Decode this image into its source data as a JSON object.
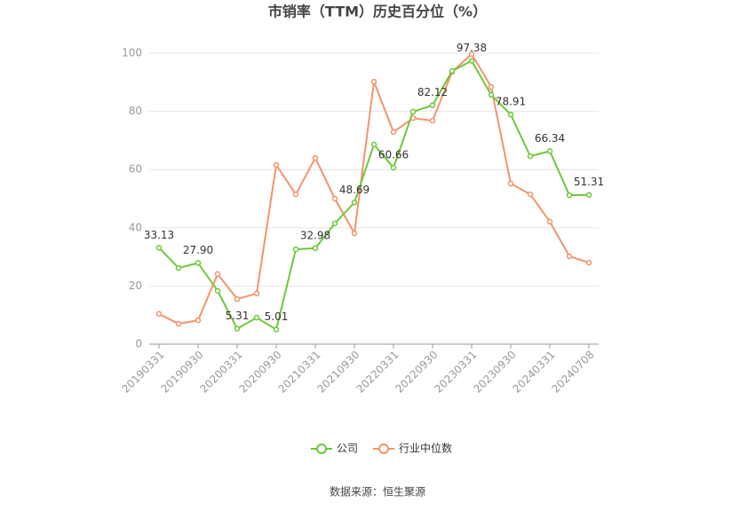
{
  "chart_data": {
    "type": "line",
    "title": "市销率（TTM）历史百分位（%）",
    "source": "数据来源：恒生聚源",
    "categories": [
      "20190331",
      null,
      "20190930",
      null,
      "20200331",
      null,
      "20200930",
      null,
      "20210331",
      null,
      "20210930",
      null,
      "20220331",
      null,
      "20220930",
      null,
      "20230331",
      null,
      "20230930",
      null,
      "20240331",
      null,
      "20240708"
    ],
    "series": [
      {
        "name": "公司",
        "color": "#6cc83a",
        "values": [
          33.13,
          26.2,
          27.9,
          18.3,
          5.31,
          9.1,
          5.01,
          32.6,
          32.98,
          41.5,
          48.69,
          68.6,
          60.66,
          79.9,
          82.12,
          93.9,
          97.38,
          85.7,
          78.91,
          64.6,
          66.34,
          51.2,
          51.31
        ],
        "value_labels": [
          "33.13",
          null,
          "27.90",
          null,
          "5.31",
          null,
          "5.01",
          null,
          "32.98",
          null,
          "48.69",
          null,
          "60.66",
          null,
          "82.12",
          null,
          "97.38",
          null,
          "78.91",
          null,
          "66.34",
          null,
          "51.31"
        ]
      },
      {
        "name": "行业中位数",
        "color": "#f4936a",
        "values": [
          10.4,
          7.0,
          8.2,
          24.1,
          15.5,
          17.4,
          61.6,
          51.5,
          64.0,
          50.0,
          38.1,
          90.2,
          72.9,
          77.7,
          76.8,
          93.6,
          99.7,
          88.4,
          55.2,
          51.5,
          42.1,
          30.2,
          28.0
        ]
      }
    ],
    "ylim": [
      0,
      100
    ],
    "yticks": [
      0,
      20,
      40,
      60,
      80,
      100
    ],
    "grid": true
  }
}
